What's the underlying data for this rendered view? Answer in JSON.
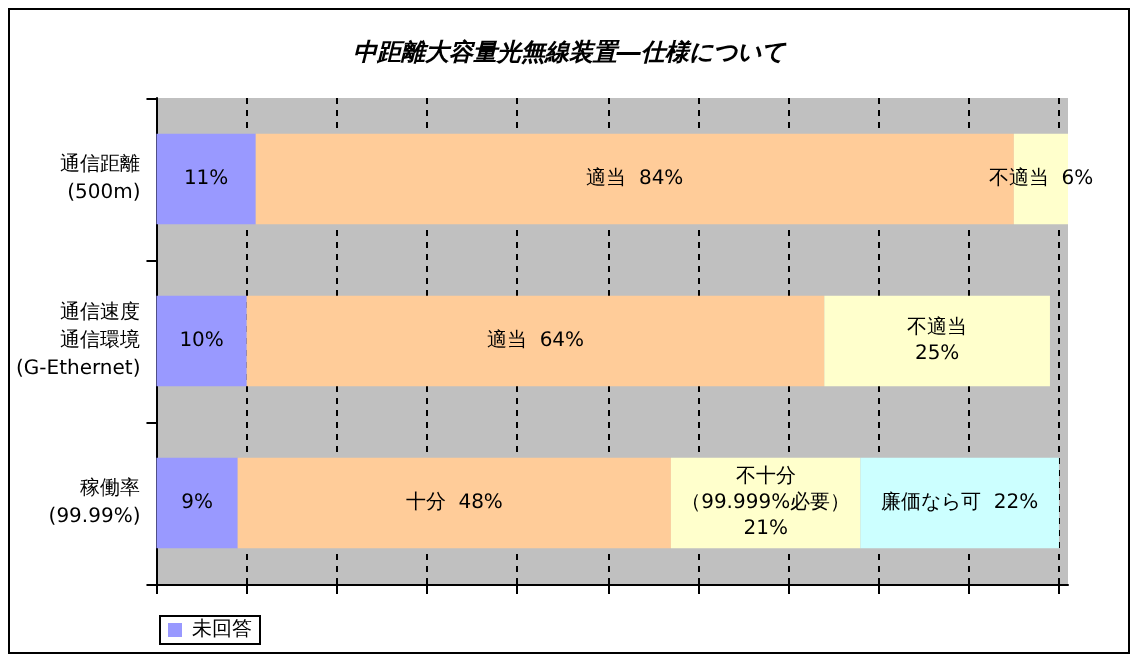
{
  "chart_data": {
    "type": "bar",
    "title": "中距離大容量光無線装置―仕様について",
    "orientation": "horizontal",
    "stacked": true,
    "categories": [
      "通信距離\n(500m)",
      "通信速度通信環境\n(G-Ethernet)",
      "稼働率\n(99.99%)"
    ],
    "series": [
      {
        "name": "未回答",
        "color": "#9999ff",
        "values": [
          11,
          10,
          9
        ],
        "value_labels": [
          "11%",
          "10%",
          "9%"
        ]
      },
      {
        "color": "#ffcc99",
        "values": [
          84,
          64,
          48
        ],
        "value_labels": [
          "適当  84%",
          "適当  64%",
          "十分  48%"
        ]
      },
      {
        "color": "#ffffcc",
        "values": [
          6,
          25,
          21
        ],
        "value_labels": [
          "不適当  6%",
          "不適当\n25%",
          "不十分（99.999%必要）\n21%"
        ]
      },
      {
        "color": "#ccffff",
        "values": [
          null,
          null,
          22
        ],
        "value_labels": [
          null,
          null,
          "廉価なら可  22%"
        ]
      }
    ],
    "xlim": [
      0,
      101
    ],
    "xticks": [
      {
        "value": 0,
        "label": null
      },
      {
        "value": 10,
        "label": null
      },
      {
        "value": 20,
        "label": null
      },
      {
        "value": 30,
        "label": null
      },
      {
        "value": 40,
        "label": null
      },
      {
        "value": 50,
        "label": null
      },
      {
        "value": 60,
        "label": null
      },
      {
        "value": 70,
        "label": null
      },
      {
        "value": 80,
        "label": null
      },
      {
        "value": 90,
        "label": null
      },
      {
        "value": 100,
        "label": null
      }
    ],
    "grid": "x",
    "legend": "bottom left",
    "tick_labels": "y"
  }
}
